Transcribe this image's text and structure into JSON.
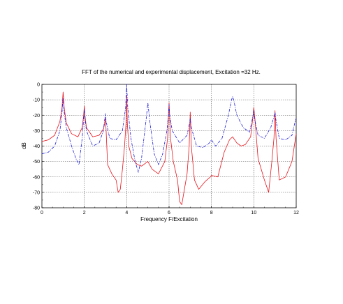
{
  "chart_data": {
    "type": "line",
    "title": "FFT of the numerical and experimental displacement,  Excitation =32 Hz.",
    "xlabel": "Frequency  F/Excitation",
    "ylabel": "dB",
    "xlim": [
      0,
      12
    ],
    "ylim": [
      -80,
      0
    ],
    "x_ticks": [
      "0",
      "2",
      "4",
      "6",
      "8",
      "10",
      "12"
    ],
    "y_ticks": [
      "0",
      "-10",
      "-20",
      "-30",
      "-40",
      "-50",
      "-60",
      "-70",
      "-80"
    ],
    "grid": true,
    "colors": {
      "experimental": "#e8141c",
      "numerical": "#1b1bd8"
    },
    "series": [
      {
        "style": "solid",
        "color": "#e8141c",
        "points": [
          [
            0,
            -37
          ],
          [
            0.3,
            -36
          ],
          [
            0.6,
            -33
          ],
          [
            0.85,
            -24
          ],
          [
            0.95,
            -15
          ],
          [
            1.0,
            -5
          ],
          [
            1.05,
            -15
          ],
          [
            1.15,
            -25
          ],
          [
            1.4,
            -32
          ],
          [
            1.7,
            -34
          ],
          [
            1.9,
            -28
          ],
          [
            1.97,
            -20
          ],
          [
            2.0,
            -14
          ],
          [
            2.03,
            -20
          ],
          [
            2.1,
            -28
          ],
          [
            2.4,
            -34
          ],
          [
            2.7,
            -33
          ],
          [
            2.9,
            -29
          ],
          [
            2.97,
            -25
          ],
          [
            3.0,
            -22
          ],
          [
            3.03,
            -30
          ],
          [
            3.1,
            -52
          ],
          [
            3.3,
            -58
          ],
          [
            3.5,
            -62
          ],
          [
            3.6,
            -70
          ],
          [
            3.7,
            -68
          ],
          [
            3.8,
            -55
          ],
          [
            3.9,
            -40
          ],
          [
            3.97,
            -25
          ],
          [
            4.0,
            -7
          ],
          [
            4.03,
            -25
          ],
          [
            4.1,
            -40
          ],
          [
            4.25,
            -48
          ],
          [
            4.5,
            -52
          ],
          [
            4.7,
            -53
          ],
          [
            4.9,
            -51
          ],
          [
            5.0,
            -50
          ],
          [
            5.2,
            -55
          ],
          [
            5.5,
            -58
          ],
          [
            5.8,
            -50
          ],
          [
            5.93,
            -35
          ],
          [
            6.0,
            -12
          ],
          [
            6.07,
            -35
          ],
          [
            6.2,
            -50
          ],
          [
            6.4,
            -62
          ],
          [
            6.5,
            -76
          ],
          [
            6.6,
            -78
          ],
          [
            6.7,
            -70
          ],
          [
            6.85,
            -58
          ],
          [
            6.95,
            -40
          ],
          [
            7.0,
            -18
          ],
          [
            7.05,
            -40
          ],
          [
            7.2,
            -62
          ],
          [
            7.4,
            -68
          ],
          [
            7.7,
            -63
          ],
          [
            7.95,
            -60
          ],
          [
            8.0,
            -59
          ],
          [
            8.3,
            -60
          ],
          [
            8.6,
            -44
          ],
          [
            8.85,
            -36
          ],
          [
            9.0,
            -34
          ],
          [
            9.2,
            -38
          ],
          [
            9.4,
            -40
          ],
          [
            9.6,
            -39
          ],
          [
            9.85,
            -34
          ],
          [
            9.95,
            -22
          ],
          [
            10.0,
            -15
          ],
          [
            10.05,
            -22
          ],
          [
            10.2,
            -48
          ],
          [
            10.5,
            -62
          ],
          [
            10.7,
            -70
          ],
          [
            10.85,
            -50
          ],
          [
            10.95,
            -35
          ],
          [
            11.0,
            -17
          ],
          [
            11.05,
            -35
          ],
          [
            11.2,
            -62
          ],
          [
            11.5,
            -60
          ],
          [
            11.8,
            -50
          ],
          [
            12.0,
            -32
          ]
        ]
      },
      {
        "style": "dash-dot",
        "color": "#1b1bd8",
        "points": [
          [
            0,
            -45
          ],
          [
            0.3,
            -44
          ],
          [
            0.6,
            -40
          ],
          [
            0.85,
            -30
          ],
          [
            0.95,
            -18
          ],
          [
            1.0,
            -9
          ],
          [
            1.05,
            -18
          ],
          [
            1.15,
            -28
          ],
          [
            1.4,
            -40
          ],
          [
            1.6,
            -48
          ],
          [
            1.75,
            -52
          ],
          [
            1.9,
            -35
          ],
          [
            1.97,
            -22
          ],
          [
            2.0,
            -16
          ],
          [
            2.03,
            -22
          ],
          [
            2.1,
            -30
          ],
          [
            2.4,
            -40
          ],
          [
            2.7,
            -38
          ],
          [
            2.9,
            -30
          ],
          [
            2.97,
            -22
          ],
          [
            3.0,
            -19
          ],
          [
            3.03,
            -24
          ],
          [
            3.2,
            -35
          ],
          [
            3.5,
            -36
          ],
          [
            3.8,
            -30
          ],
          [
            3.95,
            -15
          ],
          [
            4.0,
            0
          ],
          [
            4.05,
            -15
          ],
          [
            4.2,
            -35
          ],
          [
            4.4,
            -50
          ],
          [
            4.55,
            -57
          ],
          [
            4.7,
            -48
          ],
          [
            4.9,
            -25
          ],
          [
            5.0,
            -12
          ],
          [
            5.1,
            -25
          ],
          [
            5.3,
            -45
          ],
          [
            5.5,
            -52
          ],
          [
            5.7,
            -45
          ],
          [
            5.9,
            -30
          ],
          [
            5.97,
            -20
          ],
          [
            6.0,
            -13
          ],
          [
            6.03,
            -20
          ],
          [
            6.15,
            -30
          ],
          [
            6.5,
            -38
          ],
          [
            6.85,
            -33
          ],
          [
            6.97,
            -25
          ],
          [
            7.0,
            -22
          ],
          [
            7.05,
            -28
          ],
          [
            7.3,
            -40
          ],
          [
            7.6,
            -41
          ],
          [
            7.9,
            -38
          ],
          [
            8.0,
            -36
          ],
          [
            8.2,
            -40
          ],
          [
            8.5,
            -35
          ],
          [
            8.8,
            -20
          ],
          [
            8.95,
            -10
          ],
          [
            9.0,
            -8
          ],
          [
            9.05,
            -10
          ],
          [
            9.2,
            -20
          ],
          [
            9.5,
            -28
          ],
          [
            9.8,
            -31
          ],
          [
            9.97,
            -20
          ],
          [
            10.0,
            -17
          ],
          [
            10.03,
            -22
          ],
          [
            10.2,
            -33
          ],
          [
            10.5,
            -35
          ],
          [
            10.8,
            -28
          ],
          [
            10.97,
            -20
          ],
          [
            11.0,
            -18
          ],
          [
            11.03,
            -22
          ],
          [
            11.2,
            -35
          ],
          [
            11.5,
            -36
          ],
          [
            11.8,
            -33
          ],
          [
            11.95,
            -24
          ],
          [
            12.0,
            -22
          ]
        ]
      }
    ]
  }
}
